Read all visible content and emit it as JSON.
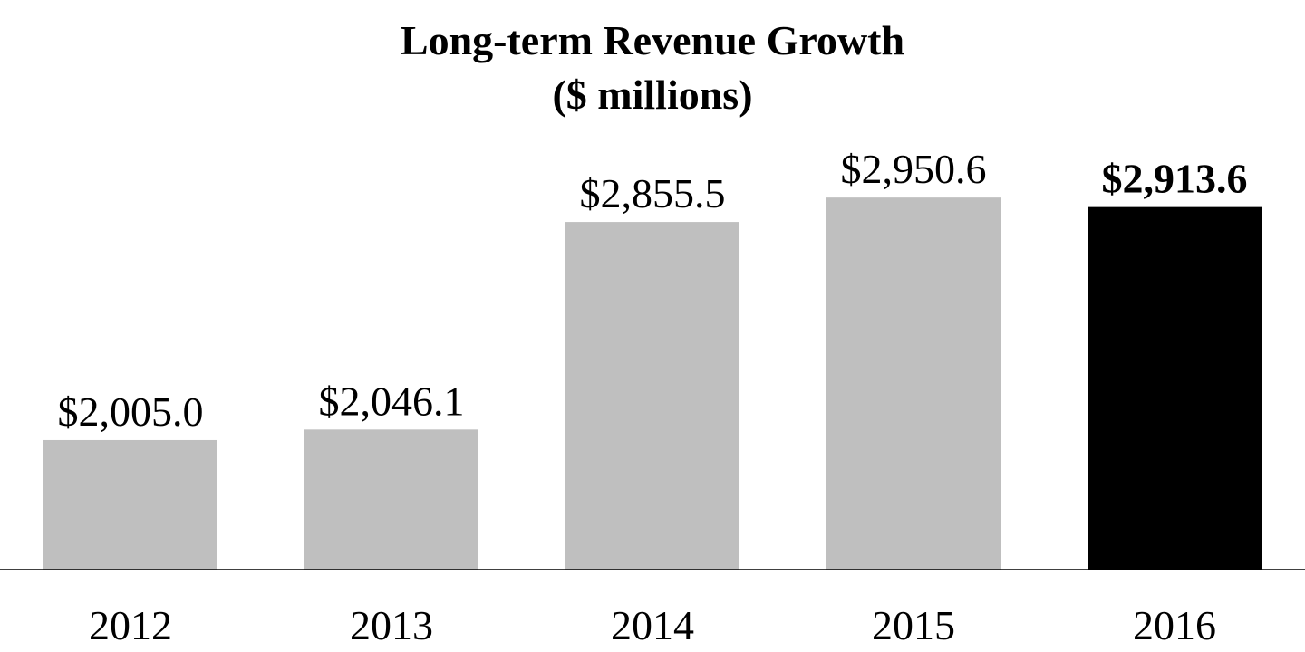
{
  "chart_data": {
    "type": "bar",
    "title": "Long-term Revenue Growth",
    "subtitle": "($ millions)",
    "xlabel": "",
    "ylabel": "",
    "categories": [
      "2012",
      "2013",
      "2014",
      "2015",
      "2016"
    ],
    "values": [
      2005.0,
      2046.1,
      2855.5,
      2950.6,
      2913.6
    ],
    "value_labels": [
      "$2,005.0",
      "$2,046.1",
      "$2,855.5",
      "$2,950.6",
      "$2,913.6"
    ],
    "highlight_category": "2016",
    "ylim": [
      1500,
      3050
    ],
    "grid": false,
    "legend": "none",
    "colors": {
      "bar": "#bfbfbf",
      "highlight_bar": "#000000",
      "axis": "#000000",
      "text": "#000000"
    }
  }
}
